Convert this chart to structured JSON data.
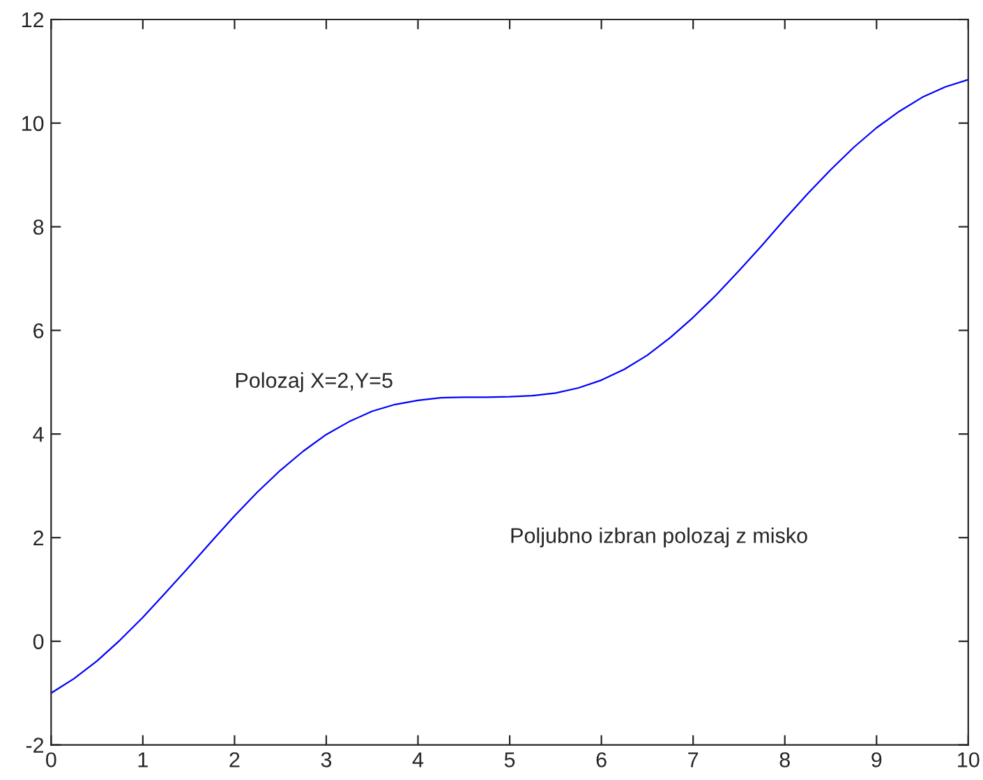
{
  "chart_data": {
    "type": "line",
    "x": [
      0,
      0.25,
      0.5,
      0.75,
      1,
      1.25,
      1.5,
      1.75,
      2,
      2.25,
      2.5,
      2.75,
      3,
      3.25,
      3.5,
      3.75,
      4,
      4.25,
      4.5,
      4.75,
      5,
      5.25,
      5.5,
      5.75,
      6,
      6.25,
      6.5,
      6.75,
      7,
      7.25,
      7.5,
      7.75,
      8,
      8.25,
      8.5,
      8.75,
      9,
      9.25,
      9.5,
      9.75,
      10
    ],
    "series": [
      {
        "color": "#0000ff",
        "values": [
          -1,
          -0.72,
          -0.38,
          0.02,
          0.46,
          0.94,
          1.43,
          1.93,
          2.42,
          2.88,
          3.3,
          3.67,
          3.99,
          4.24,
          4.44,
          4.57,
          4.65,
          4.7,
          4.71,
          4.71,
          4.72,
          4.74,
          4.79,
          4.89,
          5.04,
          5.25,
          5.52,
          5.86,
          6.25,
          6.68,
          7.15,
          7.64,
          8.15,
          8.64,
          9.1,
          9.53,
          9.91,
          10.23,
          10.5,
          10.7,
          10.84
        ]
      }
    ],
    "xlim": [
      0,
      10
    ],
    "xticks": [
      0,
      1,
      2,
      3,
      4,
      5,
      6,
      7,
      8,
      9,
      10
    ],
    "ylim": [
      -2,
      12
    ],
    "yticks": [
      -2,
      0,
      2,
      4,
      6,
      8,
      10,
      12
    ],
    "grid": false,
    "legend": false,
    "annotations": [
      "Polozaj X=2,Y=5",
      "Poljubno izbran polozaj z misko"
    ]
  }
}
